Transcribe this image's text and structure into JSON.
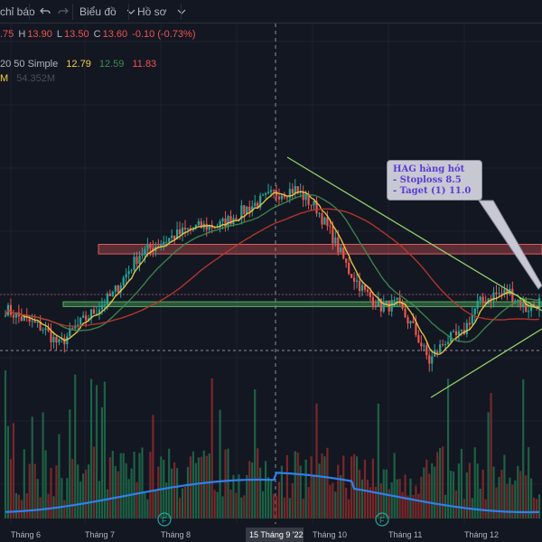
{
  "toolbar": {
    "indicators_label": "chỉ báo",
    "undo_icon": "undo-icon",
    "redo_icon": "redo-icon",
    "chart_type_label": "Biểu đồ",
    "profile_label": "Hồ sơ",
    "chevron_icon": "chevron-down-icon"
  },
  "ohlc": {
    "open": ".75",
    "high_label": "H",
    "high": "13.90",
    "low_label": "L",
    "low": "13.50",
    "close_label": "C",
    "close": "13.60",
    "change": "-0.10 (-0.73%)"
  },
  "ma": {
    "label": "20 50 Simple",
    "v1": "12.79",
    "v2": "12.59",
    "v3": "11.83"
  },
  "volume": {
    "prefix": "M",
    "value": "54.352M"
  },
  "note": {
    "title": "HAG hàng hót",
    "line1": " - Stoploss 8.5",
    "line2": " - Taget (1)  11.0"
  },
  "colors": {
    "background": "#131722",
    "up": "#26a69a",
    "down": "#ef5350",
    "ma_yellow": "#f5d142",
    "ma_green": "#3f8c4f",
    "ma_red": "#c0392b",
    "volume_ma": "#2f80ed",
    "resistance_zone": "#e05a5a",
    "support_zone": "#56b060",
    "trendline": "#8fd16a",
    "note_text": "#5b3bd6",
    "ohlc_red": "#ef5350"
  },
  "chart_data": {
    "type": "candlestick",
    "x_tick_labels": [
      "Tháng 6",
      "Tháng 7",
      "Tháng 8",
      "Tháng 9",
      "Tháng 10",
      "Tháng 11",
      "Tháng 12"
    ],
    "crosshair_label": "15 Tháng 9 '22",
    "earnings_markers": [
      "F",
      "F"
    ],
    "zones": [
      {
        "kind": "resistance",
        "low": 10.9,
        "high": 11.3
      },
      {
        "kind": "support",
        "low": 8.7,
        "high": 8.9
      }
    ],
    "anchor_prices": [
      {
        "bar": 0,
        "close": 8.6
      },
      {
        "bar": 6,
        "close": 8.2
      },
      {
        "bar": 14,
        "close": 7.8
      },
      {
        "bar": 20,
        "close": 7.1
      },
      {
        "bar": 26,
        "close": 7.8
      },
      {
        "bar": 32,
        "close": 8.4
      },
      {
        "bar": 40,
        "close": 9.2
      },
      {
        "bar": 50,
        "close": 10.9
      },
      {
        "bar": 60,
        "close": 11.5
      },
      {
        "bar": 70,
        "close": 12.0
      },
      {
        "bar": 80,
        "close": 12.1
      },
      {
        "bar": 90,
        "close": 12.8
      },
      {
        "bar": 100,
        "close": 13.4
      },
      {
        "bar": 108,
        "close": 13.6
      },
      {
        "bar": 116,
        "close": 12.8
      },
      {
        "bar": 122,
        "close": 11.6
      },
      {
        "bar": 128,
        "close": 10.2
      },
      {
        "bar": 134,
        "close": 9.3
      },
      {
        "bar": 140,
        "close": 8.7
      },
      {
        "bar": 146,
        "close": 8.8
      },
      {
        "bar": 152,
        "close": 7.8
      },
      {
        "bar": 158,
        "close": 6.4
      },
      {
        "bar": 164,
        "close": 7.3
      },
      {
        "bar": 170,
        "close": 7.5
      },
      {
        "bar": 176,
        "close": 8.8
      },
      {
        "bar": 182,
        "close": 9.2
      },
      {
        "bar": 188,
        "close": 9.3
      },
      {
        "bar": 194,
        "close": 8.6
      },
      {
        "bar": 199,
        "close": 8.9
      }
    ]
  }
}
